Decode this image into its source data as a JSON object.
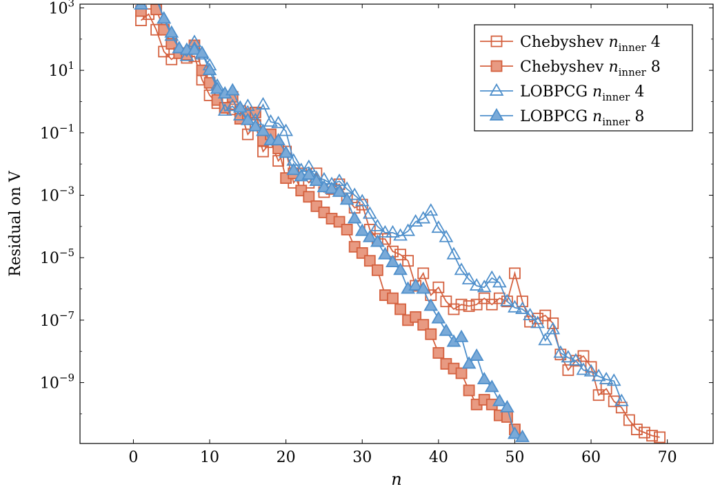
{
  "chart_data": {
    "type": "line",
    "xlabel": "n",
    "ylabel": "Residual on V",
    "xlim": [
      -7,
      76
    ],
    "ylim_log10": [
      -10.95,
      3.12
    ],
    "yscale": "log",
    "grid": false,
    "legend_position": "top-right",
    "x_ticks": [
      0,
      10,
      20,
      30,
      40,
      50,
      60,
      70
    ],
    "y_ticks": [
      {
        "exp": 3,
        "base": "10",
        "sup": "3"
      },
      {
        "exp": 1,
        "base": "10",
        "sup": "1"
      },
      {
        "exp": -1,
        "base": "10",
        "sup": "−1"
      },
      {
        "exp": -3,
        "base": "10",
        "sup": "−3"
      },
      {
        "exp": -5,
        "base": "10",
        "sup": "−5"
      },
      {
        "exp": -7,
        "base": "10",
        "sup": "−7"
      },
      {
        "exp": -9,
        "base": "10",
        "sup": "−9"
      }
    ],
    "series": [
      {
        "name": "Chebyshev n_inner 4",
        "label_main": "Chebyshev ",
        "label_var": "n",
        "label_sub": "inner",
        "label_tail": " 4",
        "color": "#d4603e",
        "fill": "none",
        "marker": "square",
        "x": [
          1,
          2,
          3,
          4,
          5,
          6,
          7,
          8,
          9,
          10,
          11,
          12,
          13,
          14,
          15,
          16,
          17,
          18,
          19,
          20,
          21,
          22,
          23,
          24,
          25,
          26,
          27,
          28,
          29,
          30,
          31,
          32,
          33,
          34,
          35,
          36,
          37,
          38,
          39,
          40,
          41,
          42,
          43,
          44,
          45,
          46,
          47,
          48,
          49,
          50,
          51,
          52,
          53,
          54,
          55,
          56,
          57,
          58,
          59,
          60,
          61,
          62,
          63,
          64,
          65,
          66,
          67,
          68,
          69
        ],
        "log10y": [
          2.6,
          2.8,
          2.3,
          1.6,
          1.35,
          1.55,
          1.4,
          1.45,
          0.7,
          0.2,
          -0.05,
          -0.2,
          -0.25,
          -0.3,
          -1.05,
          -0.75,
          -1.6,
          -1.3,
          -1.9,
          -1.6,
          -2.6,
          -2.3,
          -2.6,
          -2.3,
          -2.9,
          -2.8,
          -2.65,
          -3.1,
          -3.4,
          -3.3,
          -4.1,
          -4.4,
          -4.4,
          -4.8,
          -4.9,
          -5.1,
          -5.9,
          -5.5,
          -6.2,
          -5.95,
          -6.4,
          -6.65,
          -6.5,
          -6.55,
          -6.5,
          -6.3,
          -6.5,
          -6.3,
          -6.4,
          -5.5,
          -6.4,
          -7.05,
          -6.95,
          -6.85,
          -7.1,
          -8.1,
          -8.6,
          -8.3,
          -8.15,
          -8.5,
          -9.4,
          -9.2,
          -9.6,
          -9.8,
          -10.2,
          -10.5,
          -10.6,
          -10.7,
          -10.75
        ]
      },
      {
        "name": "Chebyshev n_inner 8",
        "label_main": "Chebyshev ",
        "label_var": "n",
        "label_sub": "inner",
        "label_tail": " 8",
        "color": "#d4603e",
        "fill": "#e89a82",
        "marker": "square",
        "x": [
          1,
          2,
          3,
          4,
          5,
          6,
          7,
          8,
          9,
          10,
          11,
          12,
          13,
          14,
          15,
          16,
          17,
          18,
          19,
          20,
          21,
          22,
          23,
          24,
          25,
          26,
          27,
          28,
          29,
          30,
          31,
          32,
          33,
          34,
          35,
          36,
          37,
          38,
          39,
          40,
          41,
          42,
          43,
          44,
          45,
          46,
          47,
          48,
          49,
          50
        ],
        "log10y": [
          2.9,
          3.6,
          2.95,
          2.3,
          1.85,
          1.55,
          1.5,
          1.8,
          1.0,
          0.6,
          0.05,
          -0.2,
          0.15,
          -0.55,
          -0.4,
          -0.35,
          -1.25,
          -1.05,
          -1.5,
          -2.45,
          -2.3,
          -2.85,
          -3.05,
          -3.35,
          -3.55,
          -3.75,
          -3.85,
          -4.1,
          -4.65,
          -4.85,
          -5.1,
          -5.4,
          -6.2,
          -6.3,
          -6.65,
          -7.0,
          -6.9,
          -7.15,
          -7.45,
          -8.05,
          -8.4,
          -8.55,
          -8.7,
          -9.25,
          -9.7,
          -9.55,
          -9.7,
          -10.05,
          -10.1,
          -10.5
        ]
      },
      {
        "name": "LOBPCG n_inner 4",
        "label_main": "LOBPCG ",
        "label_var": "n",
        "label_sub": "inner",
        "label_tail": " 4",
        "color": "#4e8fcb",
        "fill": "none",
        "marker": "triangle",
        "x": [
          2,
          3,
          4,
          5,
          6,
          7,
          8,
          9,
          10,
          11,
          12,
          13,
          14,
          15,
          16,
          17,
          18,
          19,
          20,
          21,
          22,
          23,
          24,
          25,
          26,
          27,
          28,
          29,
          30,
          31,
          32,
          33,
          34,
          35,
          36,
          37,
          38,
          39,
          40,
          41,
          42,
          43,
          44,
          45,
          46,
          47,
          48,
          49,
          50,
          51,
          52,
          53,
          54,
          55,
          56,
          57,
          58,
          59,
          60,
          61,
          62,
          63,
          64
        ],
        "log10y": [
          3.75,
          3.3,
          2.65,
          2.1,
          1.7,
          1.45,
          1.9,
          1.5,
          1.15,
          0.5,
          -0.3,
          -0.15,
          -0.45,
          -0.15,
          -0.6,
          -0.1,
          -0.65,
          -0.7,
          -0.95,
          -1.9,
          -2.2,
          -2.1,
          -2.45,
          -2.5,
          -2.65,
          -2.55,
          -2.8,
          -3.0,
          -3.2,
          -3.6,
          -4.0,
          -4.2,
          -4.2,
          -4.3,
          -4.15,
          -3.85,
          -3.75,
          -3.5,
          -4.05,
          -4.35,
          -4.9,
          -5.4,
          -5.7,
          -5.9,
          -5.95,
          -5.65,
          -5.8,
          -6.4,
          -6.6,
          -6.65,
          -6.85,
          -7.1,
          -7.65,
          -7.3,
          -8.05,
          -8.2,
          -8.3,
          -8.6,
          -8.65,
          -8.8,
          -8.9,
          -8.95,
          -9.6
        ]
      },
      {
        "name": "LOBPCG n_inner 8",
        "label_main": "LOBPCG ",
        "label_var": "n",
        "label_sub": "inner",
        "label_tail": " 8",
        "color": "#4e8fcb",
        "fill": "#7aaad8",
        "marker": "triangle",
        "x": [
          1,
          2,
          3,
          4,
          5,
          6,
          7,
          8,
          9,
          10,
          11,
          12,
          13,
          14,
          15,
          16,
          17,
          18,
          19,
          20,
          21,
          22,
          23,
          24,
          25,
          26,
          27,
          28,
          29,
          30,
          31,
          32,
          33,
          34,
          35,
          36,
          37,
          38,
          39,
          40,
          41,
          42,
          43,
          44,
          45,
          46,
          47,
          48,
          49,
          50,
          51
        ],
        "log10y": [
          3.1,
          3.9,
          3.4,
          2.65,
          2.2,
          1.7,
          1.65,
          1.65,
          1.55,
          1.0,
          0.4,
          0.25,
          0.35,
          -0.2,
          -0.6,
          -0.8,
          -0.95,
          -1.25,
          -1.25,
          -1.65,
          -2.2,
          -2.4,
          -2.35,
          -2.55,
          -2.75,
          -2.8,
          -2.9,
          -3.15,
          -3.75,
          -4.15,
          -4.35,
          -4.5,
          -4.9,
          -5.15,
          -5.4,
          -6.0,
          -5.9,
          -6.0,
          -6.55,
          -6.95,
          -7.35,
          -7.7,
          -7.55,
          -8.4,
          -8.15,
          -8.9,
          -9.15,
          -9.6,
          -9.8,
          -10.65,
          -10.75
        ]
      }
    ]
  }
}
